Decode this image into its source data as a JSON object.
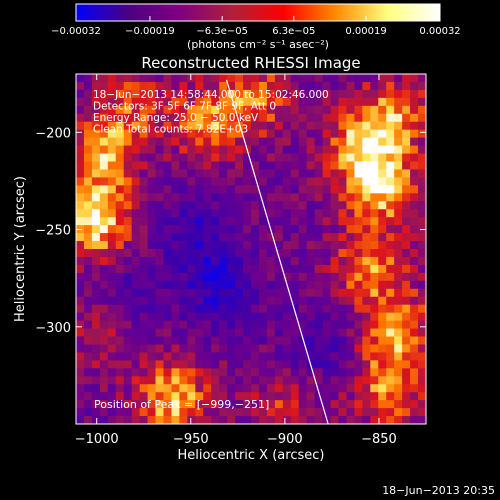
{
  "chart_data": {
    "type": "heatmap",
    "title": "Reconstructed RHESSI Image",
    "xlabel": "Heliocentric X (arcsec)",
    "ylabel": "Heliocentric Y (arcsec)",
    "x_range": [
      -1011,
      -825
    ],
    "y_range": [
      -350,
      -170
    ],
    "x_ticks": [
      -1000,
      -950,
      -900,
      -850
    ],
    "x_tick_labels": [
      "−1000",
      "−950",
      "−900",
      "−850"
    ],
    "y_ticks": [
      -200,
      -250,
      -300
    ],
    "y_tick_labels": [
      "−200",
      "−250",
      "−300"
    ],
    "colorbar": {
      "range": [
        -0.00032,
        0.00032
      ],
      "tick_values": [
        -0.00032,
        -0.00019,
        -6.3e-05,
        6.3e-05,
        0.00019,
        0.00032
      ],
      "tick_labels": [
        "−0.00032",
        "−0.00019",
        "−6.3e−05",
        "6.3e−05",
        "0.00019",
        "0.00032"
      ],
      "unit_label": "(photons cm⁻² s⁻¹ asec⁻²)",
      "colors": [
        "#0000ff",
        "#4b0082",
        "#800080",
        "#b0203a",
        "#ff0000",
        "#ff8c00",
        "#ffff80",
        "#ffffff"
      ]
    },
    "annotations": [
      "18−Jun−2013 14:58:44.000 to 15:02:46.000",
      "Detectors: 3F 5F 6F 7F 8F 9F, Att 0",
      "Energy Range: 25.0 − 50.0 keV",
      "Clean    Total counts: 7.82E+03"
    ],
    "peak_label": "Position of Peak = [−999,−251]",
    "limb_line": {
      "x": [
        -931,
        -877
      ],
      "y": [
        -173,
        -350
      ]
    },
    "sources": [
      {
        "x": -1001,
        "y": -246,
        "level": 1.0
      },
      {
        "x": -997,
        "y": -212,
        "level": 0.75
      },
      {
        "x": -850,
        "y": -229,
        "level": 0.9
      },
      {
        "x": -858,
        "y": -205,
        "level": 0.8
      },
      {
        "x": -840,
        "y": -190,
        "level": 0.6
      },
      {
        "x": -855,
        "y": -270,
        "level": 0.7
      },
      {
        "x": -839,
        "y": -302,
        "level": 0.75
      },
      {
        "x": -846,
        "y": -333,
        "level": 0.7
      },
      {
        "x": -960,
        "y": -337,
        "level": 0.9
      },
      {
        "x": -941,
        "y": -195,
        "level": 0.7
      },
      {
        "x": -914,
        "y": -182,
        "level": 0.6
      },
      {
        "x": -995,
        "y": -300,
        "level": 0.55
      },
      {
        "x": -982,
        "y": -186,
        "level": 0.5
      },
      {
        "x": -900,
        "y": -340,
        "level": 0.45
      },
      {
        "x": -935,
        "y": -280,
        "level": -0.5
      },
      {
        "x": -985,
        "y": -288,
        "level": -0.45
      },
      {
        "x": -948,
        "y": -252,
        "level": -0.4
      },
      {
        "x": -883,
        "y": -311,
        "level": -0.35
      }
    ]
  },
  "footer": {
    "timestamp": "18−Jun−2013 20:35"
  }
}
